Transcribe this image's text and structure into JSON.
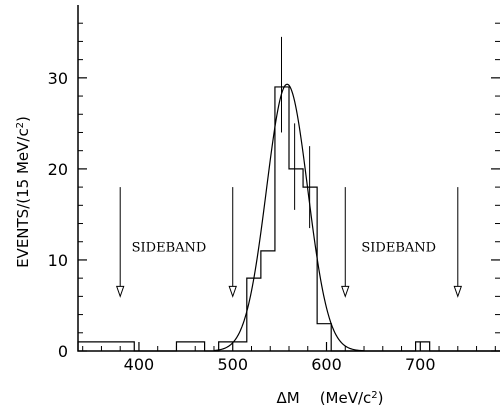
{
  "chart_data": {
    "type": "bar",
    "xlabel_symbol": "ΔM",
    "xlabel_unit": "(MeV/c",
    "xlabel_unit_sup": "2",
    "xlabel_unit_close": ")",
    "ylabel_main": "EVENTS/(15 MeV/c",
    "ylabel_sup": "2",
    "ylabel_close": ")",
    "xlim": [
      335,
      785
    ],
    "ylim": [
      0,
      38
    ],
    "x_ticks": [
      400,
      500,
      600,
      700
    ],
    "x_tick_labels": [
      "400",
      "500",
      "600",
      "700"
    ],
    "y_ticks": [
      0,
      10,
      20,
      30
    ],
    "y_tick_labels": [
      "0",
      "10",
      "20",
      "30"
    ],
    "histogram": {
      "bin_edges": [
        335,
        350,
        365,
        380,
        395,
        410,
        425,
        440,
        455,
        470,
        485,
        500,
        515,
        530,
        545,
        560,
        575,
        590,
        605,
        620,
        635,
        650,
        665,
        680,
        695,
        710,
        725,
        740,
        755,
        770,
        785
      ],
      "values": [
        1,
        1,
        1,
        1,
        0,
        0,
        0,
        1,
        1,
        0,
        1,
        1,
        8,
        11,
        29,
        20,
        18,
        3,
        0,
        0,
        0,
        0,
        0,
        0,
        1,
        0,
        0,
        0,
        0,
        0
      ],
      "error_bars": [
        {
          "x": 552,
          "center": 29,
          "low": 24,
          "high": 34.5
        },
        {
          "x": 566,
          "center": 20,
          "low": 15.5,
          "high": 25
        },
        {
          "x": 582,
          "center": 18,
          "low": 13.5,
          "high": 22.5
        }
      ]
    },
    "fit": {
      "type": "gaussian",
      "mean": 558,
      "sigma": 22,
      "peak": 29.3
    },
    "annotations": [
      {
        "text": "SIDEBAND",
        "x": 432,
        "y": 11.5
      },
      {
        "text": "SIDEBAND",
        "x": 677,
        "y": 11.5
      }
    ],
    "arrows": [
      {
        "x": 380,
        "y_top": 18,
        "y_bottom": 6
      },
      {
        "x": 500,
        "y_top": 18,
        "y_bottom": 6
      },
      {
        "x": 620,
        "y_top": 18,
        "y_bottom": 6
      },
      {
        "x": 740,
        "y_top": 18,
        "y_bottom": 6
      }
    ]
  }
}
